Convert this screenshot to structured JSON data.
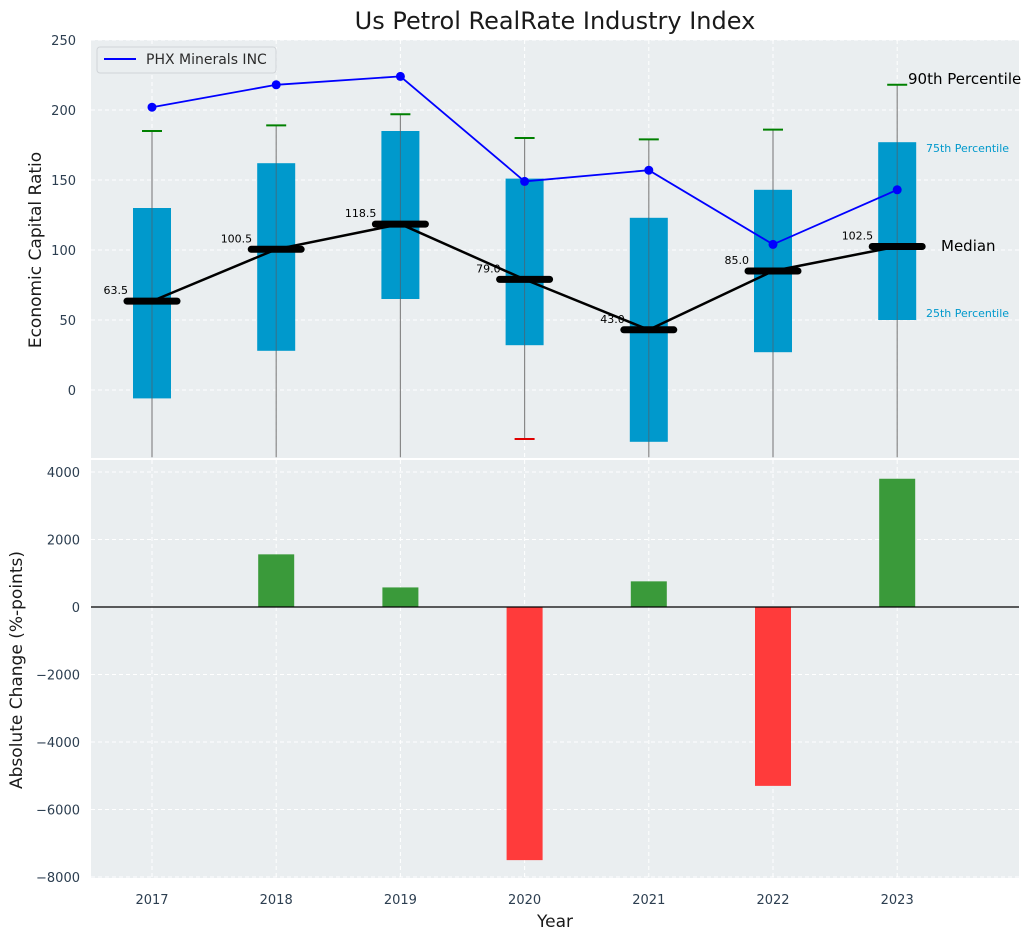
{
  "chart_data": [
    {
      "type": "box",
      "title": "Us Petrol RealRate Industry Index",
      "ylabel": "Economic Capital Ratio",
      "ylim": [
        -48,
        250
      ],
      "yticks": [
        0,
        50,
        100,
        150,
        200,
        250
      ],
      "categories": [
        "2017",
        "2018",
        "2019",
        "2020",
        "2021",
        "2022",
        "2023"
      ],
      "boxes": {
        "q1": [
          -6,
          28,
          65,
          32,
          -37,
          27,
          50
        ],
        "q3": [
          130,
          162,
          185,
          151,
          123,
          143,
          177
        ],
        "median": [
          63.5,
          100.5,
          118.5,
          79.0,
          43.0,
          85.0,
          102.5
        ],
        "whisker_low": [
          -48,
          -48,
          -48,
          -35,
          -48,
          -48,
          -48
        ],
        "whisker_high": [
          185,
          189,
          197,
          180,
          179,
          186,
          218
        ]
      },
      "median_labels": [
        "63.5",
        "100.5",
        "118.5",
        "79.0",
        "43.0",
        "85.0",
        "102.5"
      ],
      "series": [
        {
          "name": "PHX Minerals INC",
          "values": [
            202,
            218,
            224,
            149,
            157,
            104,
            143
          ]
        }
      ],
      "annotations": {
        "p90": "90th Percentile",
        "p75": "75th Percentile",
        "median": "Median",
        "p25": "25th Percentile"
      },
      "colors": {
        "box": "#0099cc",
        "company_line": "#0000ff",
        "median_line": "#000000",
        "whisker_cap": "#008000",
        "whisker_cap_low": "#e00000",
        "background": "#eaeef0"
      }
    },
    {
      "type": "bar",
      "xlabel": "Year",
      "ylabel": "Absolute Change (%-points)",
      "ylim": [
        -8000,
        4400
      ],
      "yticks": [
        -8000,
        -6000,
        -4000,
        -2000,
        0,
        2000,
        4000
      ],
      "categories": [
        "2017",
        "2018",
        "2019",
        "2020",
        "2021",
        "2022",
        "2023"
      ],
      "values": [
        0,
        1560,
        580,
        -7500,
        760,
        -5300,
        3800
      ],
      "colors": {
        "positive": "#3a9a3a",
        "negative": "#ff3b3b",
        "zero_line": "#000000"
      }
    }
  ]
}
